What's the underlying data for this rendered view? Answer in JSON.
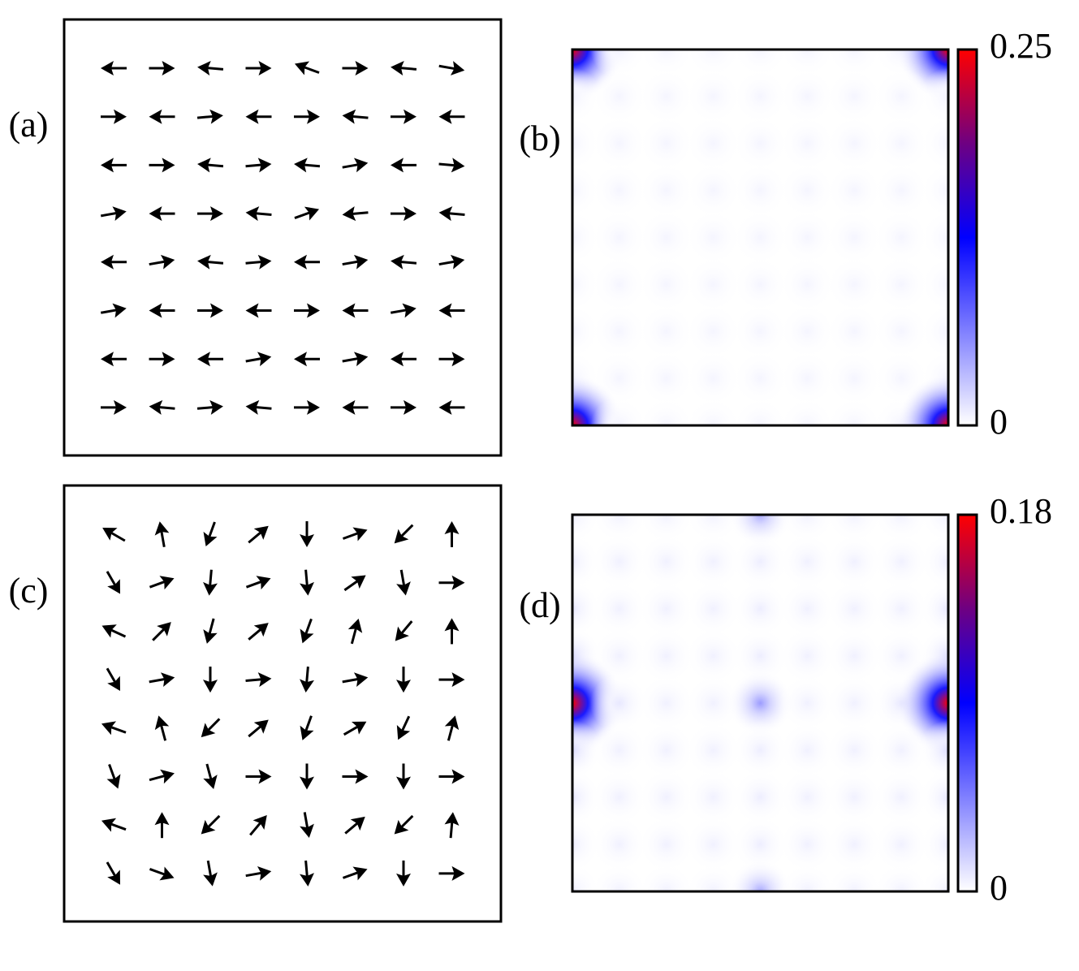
{
  "chart_data": [
    {
      "type": "quiver",
      "label": "(a)",
      "angles": [
        [
          180,
          0,
          175,
          0,
          160,
          0,
          175,
          350
        ],
        [
          0,
          180,
          5,
          180,
          0,
          175,
          0,
          180
        ],
        [
          180,
          0,
          175,
          5,
          175,
          10,
          180,
          355
        ],
        [
          10,
          180,
          0,
          175,
          20,
          185,
          0,
          175
        ],
        [
          180,
          10,
          175,
          5,
          180,
          10,
          175,
          10
        ],
        [
          10,
          180,
          0,
          180,
          0,
          180,
          10,
          180
        ],
        [
          180,
          0,
          180,
          10,
          180,
          10,
          180,
          0
        ],
        [
          0,
          175,
          5,
          175,
          0,
          180,
          0,
          180
        ]
      ]
    },
    {
      "type": "heatmap",
      "label": "(b)",
      "clim": [
        0,
        0.25
      ],
      "cticks": [
        0,
        0.25
      ],
      "values": [
        [
          0.25,
          0.006,
          0.005,
          0.005,
          0.005,
          0.005,
          0.005,
          0.006,
          0.25
        ],
        [
          0.006,
          0.005,
          0.005,
          0.005,
          0.005,
          0.005,
          0.005,
          0.005,
          0.006
        ],
        [
          0.005,
          0.005,
          0.005,
          0.005,
          0.005,
          0.005,
          0.005,
          0.005,
          0.005
        ],
        [
          0.005,
          0.005,
          0.005,
          0.005,
          0.005,
          0.005,
          0.005,
          0.005,
          0.005
        ],
        [
          0.005,
          0.005,
          0.005,
          0.005,
          0.005,
          0.005,
          0.005,
          0.005,
          0.005
        ],
        [
          0.005,
          0.005,
          0.005,
          0.005,
          0.005,
          0.005,
          0.005,
          0.005,
          0.005
        ],
        [
          0.005,
          0.005,
          0.005,
          0.005,
          0.005,
          0.005,
          0.005,
          0.005,
          0.005
        ],
        [
          0.006,
          0.005,
          0.005,
          0.005,
          0.005,
          0.005,
          0.005,
          0.005,
          0.006
        ],
        [
          0.25,
          0.006,
          0.005,
          0.005,
          0.005,
          0.005,
          0.005,
          0.006,
          0.25
        ]
      ]
    },
    {
      "type": "quiver",
      "label": "(c)",
      "angles": [
        [
          150,
          100,
          250,
          40,
          270,
          20,
          225,
          90
        ],
        [
          300,
          20,
          265,
          20,
          275,
          35,
          280,
          0
        ],
        [
          155,
          45,
          255,
          40,
          250,
          75,
          230,
          90
        ],
        [
          300,
          10,
          270,
          5,
          265,
          10,
          270,
          0
        ],
        [
          160,
          105,
          225,
          40,
          250,
          30,
          245,
          75
        ],
        [
          290,
          15,
          285,
          0,
          270,
          0,
          270,
          0
        ],
        [
          160,
          90,
          225,
          50,
          280,
          40,
          225,
          85
        ],
        [
          300,
          340,
          280,
          10,
          275,
          20,
          270,
          0
        ]
      ]
    },
    {
      "type": "heatmap",
      "label": "(d)",
      "clim": [
        0,
        0.18
      ],
      "cticks": [
        0,
        0.18
      ],
      "values": [
        [
          0.006,
          0.005,
          0.005,
          0.005,
          0.03,
          0.005,
          0.005,
          0.005,
          0.006
        ],
        [
          0.006,
          0.005,
          0.005,
          0.005,
          0.006,
          0.005,
          0.005,
          0.005,
          0.006
        ],
        [
          0.008,
          0.005,
          0.005,
          0.005,
          0.006,
          0.005,
          0.005,
          0.005,
          0.008
        ],
        [
          0.012,
          0.005,
          0.005,
          0.005,
          0.006,
          0.005,
          0.005,
          0.005,
          0.012
        ],
        [
          0.18,
          0.008,
          0.005,
          0.005,
          0.035,
          0.005,
          0.005,
          0.008,
          0.18
        ],
        [
          0.012,
          0.005,
          0.005,
          0.005,
          0.006,
          0.005,
          0.005,
          0.005,
          0.012
        ],
        [
          0.008,
          0.005,
          0.005,
          0.005,
          0.006,
          0.005,
          0.005,
          0.005,
          0.008
        ],
        [
          0.006,
          0.005,
          0.005,
          0.005,
          0.006,
          0.005,
          0.005,
          0.005,
          0.006
        ],
        [
          0.006,
          0.005,
          0.005,
          0.005,
          0.03,
          0.005,
          0.005,
          0.005,
          0.006
        ]
      ]
    }
  ]
}
